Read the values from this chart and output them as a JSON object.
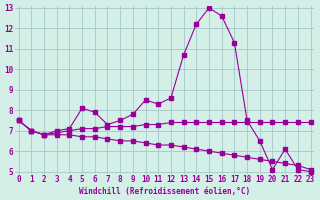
{
  "xlabel": "Windchill (Refroidissement éolien,°C)",
  "ylabel": "",
  "background_color": "#d4eee8",
  "grid_color": "#aacccc",
  "line_color": "#990099",
  "x": [
    0,
    1,
    2,
    3,
    4,
    5,
    6,
    7,
    8,
    9,
    10,
    11,
    12,
    13,
    14,
    15,
    16,
    17,
    18,
    19,
    20,
    21,
    22,
    23
  ],
  "series1": [
    7.5,
    7.0,
    6.8,
    7.0,
    7.1,
    8.1,
    7.9,
    7.3,
    7.5,
    7.8,
    8.5,
    8.3,
    8.6,
    10.7,
    12.2,
    13.0,
    12.6,
    11.3,
    7.5,
    6.5,
    5.1,
    6.1,
    5.1,
    5.0
  ],
  "series2": [
    7.5,
    7.0,
    6.8,
    6.9,
    7.0,
    7.1,
    7.1,
    7.2,
    7.2,
    7.2,
    7.3,
    7.3,
    7.4,
    7.4,
    7.4,
    7.4,
    7.4,
    7.4,
    7.4,
    7.4,
    7.4,
    7.4,
    7.4,
    7.4
  ],
  "series3": [
    7.5,
    7.0,
    6.8,
    6.8,
    6.8,
    6.7,
    6.7,
    6.6,
    6.5,
    6.5,
    6.4,
    6.3,
    6.3,
    6.2,
    6.1,
    6.0,
    5.9,
    5.8,
    5.7,
    5.6,
    5.5,
    5.4,
    5.3,
    5.1
  ],
  "ylim": [
    5,
    13
  ],
  "xlim": [
    0,
    23
  ],
  "yticks": [
    5,
    6,
    7,
    8,
    9,
    10,
    11,
    12,
    13
  ],
  "xticks": [
    0,
    1,
    2,
    3,
    4,
    5,
    6,
    7,
    8,
    9,
    10,
    11,
    12,
    13,
    14,
    15,
    16,
    17,
    18,
    19,
    20,
    21,
    22,
    23
  ]
}
